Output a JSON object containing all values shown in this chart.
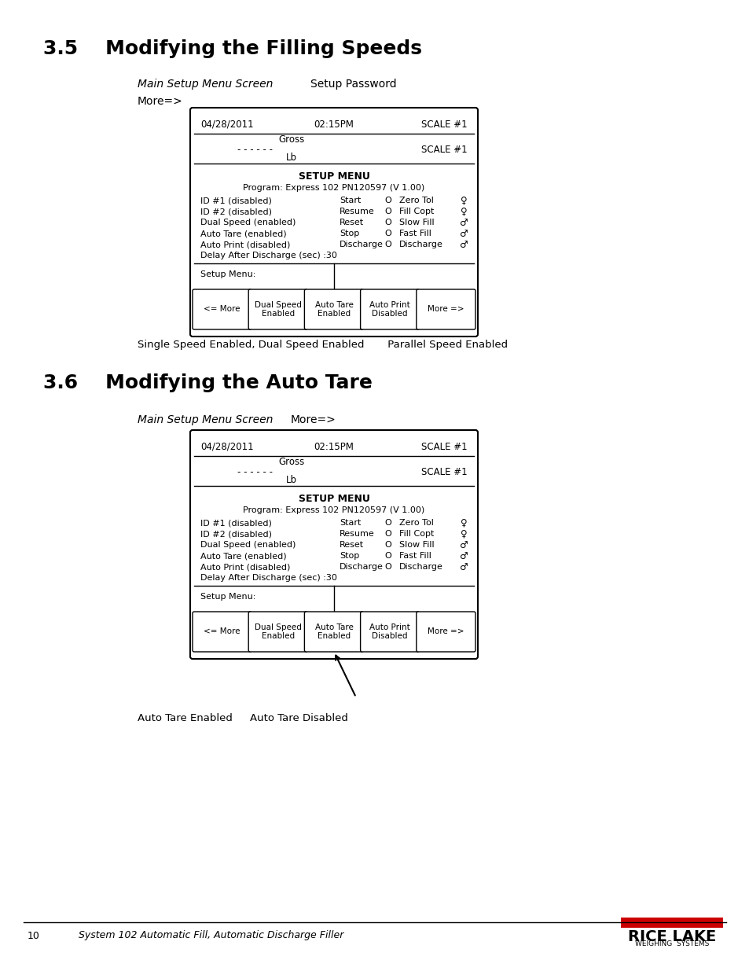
{
  "page_bg": "#ffffff",
  "section1_title": "3.5    Modifying the Filling Speeds",
  "section2_title": "3.6    Modifying the Auto Tare",
  "section1_label1": "Main Setup Menu Screen",
  "section1_label2": "Setup Password",
  "section1_label3": "More=>",
  "section2_label1": "Main Setup Menu Screen",
  "section2_label2": "More=>",
  "screen_date": "04/28/2011",
  "screen_time": "02:15PM",
  "screen_scale": "SCALE #1",
  "screen_gross": "Gross",
  "screen_lb": "Lb",
  "screen_scale2": "SCALE #1",
  "setup_menu_title": "SETUP MENU",
  "setup_program": "Program: Express 102 PN120597 (V 1.00)",
  "setup_rows": [
    [
      "ID #1 (disabled)",
      "Start",
      "O",
      "Zero Tol",
      "♀"
    ],
    [
      "ID #2 (disabled)",
      "Resume",
      "O",
      "Fill Copt",
      "♀"
    ],
    [
      "Dual Speed (enabled)",
      "Reset",
      "O",
      "Slow Fill",
      "♂"
    ],
    [
      "Auto Tare (enabled)",
      "Stop",
      "O",
      "Fast Fill",
      "♂"
    ],
    [
      "Auto Print (disabled)",
      "Discharge",
      "O",
      "Discharge",
      "♂"
    ]
  ],
  "setup_delay": "Delay After Discharge (sec) :30",
  "setup_menu_label": "Setup Menu:",
  "bottom_buttons": [
    "<= More",
    "Dual Speed\nEnabled",
    "Auto Tare\nEnabled",
    "Auto Print\nDisabled",
    "More =>"
  ],
  "section1_caption": "Single Speed Enabled, Dual Speed Enabled       Parallel Speed Enabled",
  "section2_caption1": "Auto Tare Enabled",
  "section2_caption2": "Auto Tare Disabled",
  "footer_page": "10",
  "footer_text": "System 102 Automatic Fill, Automatic Discharge Filler",
  "rl_logo_red": "#cc0000"
}
